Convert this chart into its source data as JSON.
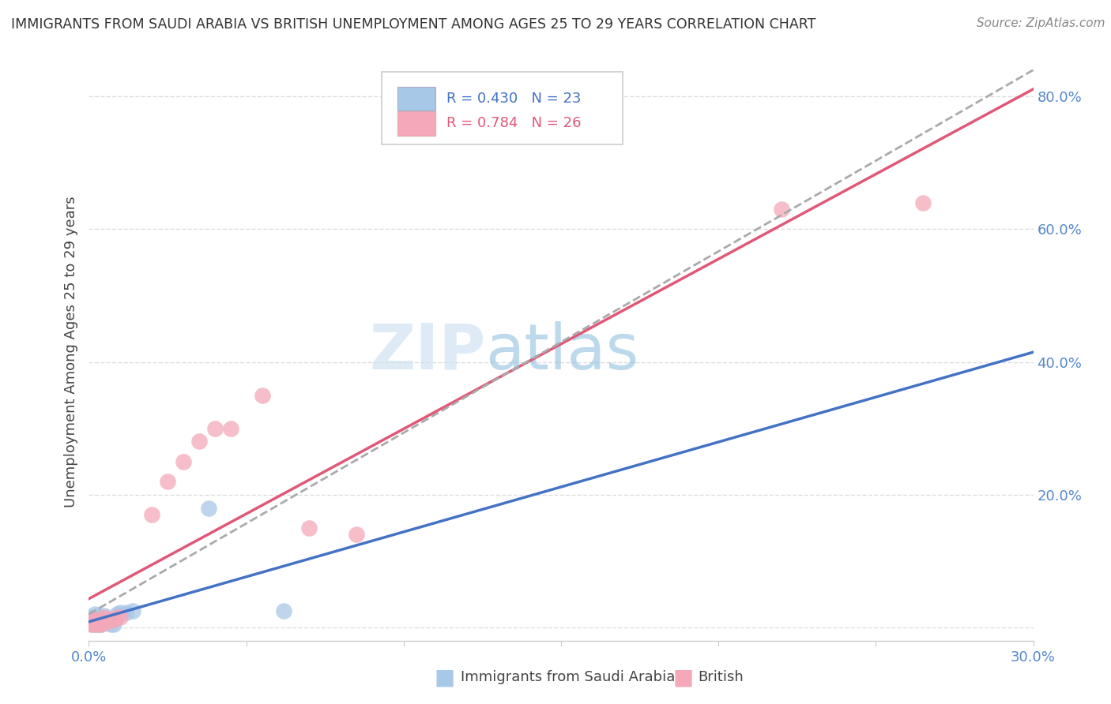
{
  "title": "IMMIGRANTS FROM SAUDI ARABIA VS BRITISH UNEMPLOYMENT AMONG AGES 25 TO 29 YEARS CORRELATION CHART",
  "source": "Source: ZipAtlas.com",
  "ylabel": "Unemployment Among Ages 25 to 29 years",
  "xlim": [
    0.0,
    0.3
  ],
  "ylim": [
    -0.02,
    0.85
  ],
  "scatter_blue": [
    [
      0.001,
      0.005
    ],
    [
      0.001,
      0.01
    ],
    [
      0.001,
      0.015
    ],
    [
      0.002,
      0.005
    ],
    [
      0.002,
      0.01
    ],
    [
      0.002,
      0.015
    ],
    [
      0.002,
      0.02
    ],
    [
      0.003,
      0.005
    ],
    [
      0.003,
      0.01
    ],
    [
      0.003,
      0.018
    ],
    [
      0.004,
      0.005
    ],
    [
      0.004,
      0.012
    ],
    [
      0.005,
      0.008
    ],
    [
      0.005,
      0.018
    ],
    [
      0.006,
      0.012
    ],
    [
      0.007,
      0.005
    ],
    [
      0.008,
      0.005
    ],
    [
      0.009,
      0.02
    ],
    [
      0.01,
      0.022
    ],
    [
      0.012,
      0.022
    ],
    [
      0.014,
      0.025
    ],
    [
      0.038,
      0.18
    ],
    [
      0.062,
      0.025
    ]
  ],
  "scatter_pink": [
    [
      0.001,
      0.005
    ],
    [
      0.001,
      0.01
    ],
    [
      0.002,
      0.005
    ],
    [
      0.002,
      0.01
    ],
    [
      0.003,
      0.005
    ],
    [
      0.003,
      0.012
    ],
    [
      0.004,
      0.005
    ],
    [
      0.004,
      0.01
    ],
    [
      0.005,
      0.01
    ],
    [
      0.005,
      0.015
    ],
    [
      0.006,
      0.008
    ],
    [
      0.007,
      0.012
    ],
    [
      0.008,
      0.012
    ],
    [
      0.009,
      0.015
    ],
    [
      0.01,
      0.015
    ],
    [
      0.02,
      0.17
    ],
    [
      0.025,
      0.22
    ],
    [
      0.03,
      0.25
    ],
    [
      0.035,
      0.28
    ],
    [
      0.04,
      0.3
    ],
    [
      0.045,
      0.3
    ],
    [
      0.055,
      0.35
    ],
    [
      0.07,
      0.15
    ],
    [
      0.085,
      0.14
    ],
    [
      0.22,
      0.63
    ],
    [
      0.265,
      0.64
    ]
  ],
  "blue_color": "#a8c8e8",
  "pink_color": "#f4a8b8",
  "blue_line_color": "#4472c4",
  "pink_line_color": "#e05878",
  "gray_dash_color": "#aaaaaa",
  "background_color": "#ffffff",
  "grid_color": "#dddddd",
  "watermark": "ZIPatlas",
  "watermark_zip_color": "#c8dff0",
  "watermark_atlas_color": "#88bbdd",
  "legend_r1": "R = 0.430",
  "legend_n1": "N = 23",
  "legend_r2": "R = 0.784",
  "legend_n2": "N = 26",
  "text_blue_color": "#4472c4",
  "text_pink_color": "#e05878",
  "tick_color": "#5588cc"
}
